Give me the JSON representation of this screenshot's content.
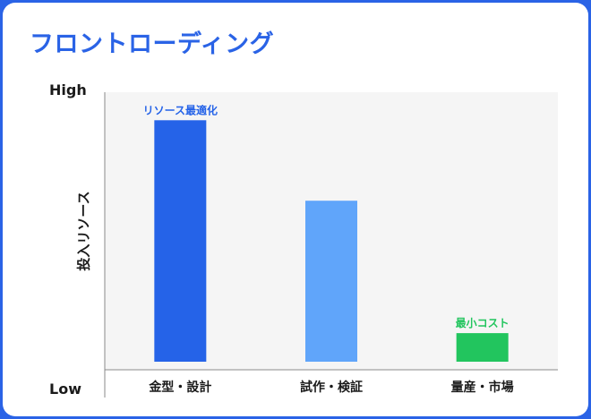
{
  "title": "フロントローディング",
  "chart_data": {
    "type": "bar",
    "title": "フロントローディング",
    "xlabel": "",
    "ylabel": "投入リソース",
    "y_tick_labels": {
      "top": "High",
      "bottom": "Low"
    },
    "ylim": [
      0,
      100
    ],
    "categories": [
      "金型・設計",
      "試作・検証",
      "量産・市場"
    ],
    "values": [
      93,
      62,
      11
    ],
    "colors": [
      "#2563e8",
      "#60a5fa",
      "#22c55e"
    ],
    "annotations": [
      "リソース最適化",
      "",
      "最小コスト"
    ],
    "grid": false,
    "background": "#f5f5f5"
  }
}
